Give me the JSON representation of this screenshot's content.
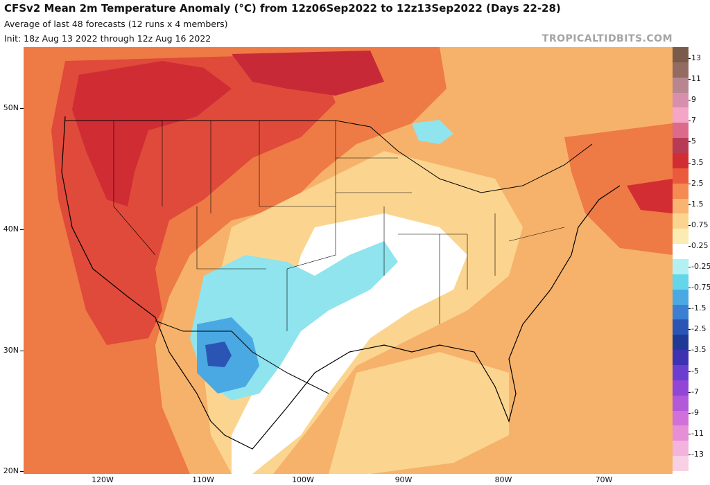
{
  "header": {
    "title": "CFSv2 Mean 2m Temperature Anomaly (°C) from 12z06Sep2022 to 12z13Sep2022 (Days 22-28)",
    "subtitle": "Average of last 48 forecasts (12 runs x 4 members)",
    "init": "Init: 18z Aug 13 2022 through 12z Aug 16 2022"
  },
  "credit": "TROPICALTIDBITS.COM",
  "axes": {
    "lat_labels": [
      "50N",
      "40N",
      "30N",
      "20N"
    ],
    "lon_labels": [
      "120W",
      "110W",
      "100W",
      "90W",
      "80W",
      "70W"
    ]
  },
  "legend": {
    "labels": [
      "13",
      "11",
      "9",
      "7",
      "5",
      "3.5",
      "2.5",
      "1.5",
      "0.75",
      "0.25",
      "-0.25",
      "-0.75",
      "-1.5",
      "-2.5",
      "-3.5",
      "-5",
      "-7",
      "-9",
      "-11",
      "-13"
    ],
    "colors": [
      "#7a5a4a",
      "#946b60",
      "#b78690",
      "#d88fae",
      "#f5a5c6",
      "#dc6a8a",
      "#b83b55",
      "#d22d33",
      "#ea5b3d",
      "#f48b52",
      "#f8b470",
      "#fbd58f",
      "#fdebb4",
      "#ffffff",
      "#b3f0f3",
      "#63d6ea",
      "#4aa9e2",
      "#3a7fd2",
      "#2b55b4",
      "#1f3a95",
      "#3c32b2",
      "#6a3fd0",
      "#9246d6",
      "#b159d8",
      "#d070d8",
      "#e68fd6",
      "#f2b3dc",
      "#f8d0e3"
    ]
  },
  "map_regions": [
    {
      "name": "west-warm-region",
      "color": "#e8563e"
    },
    {
      "name": "northwest-hot-region",
      "color": "#d22d33"
    },
    {
      "name": "southwest-cool-region",
      "color": "#63d6ea"
    },
    {
      "name": "west-texas-cold-core",
      "color": "#2b55b4"
    },
    {
      "name": "central-neutral-region",
      "color": "#ffffff"
    },
    {
      "name": "great-lakes-cool-spot",
      "color": "#63d6ea"
    },
    {
      "name": "northeast-hot-spot",
      "color": "#d22d33"
    }
  ]
}
